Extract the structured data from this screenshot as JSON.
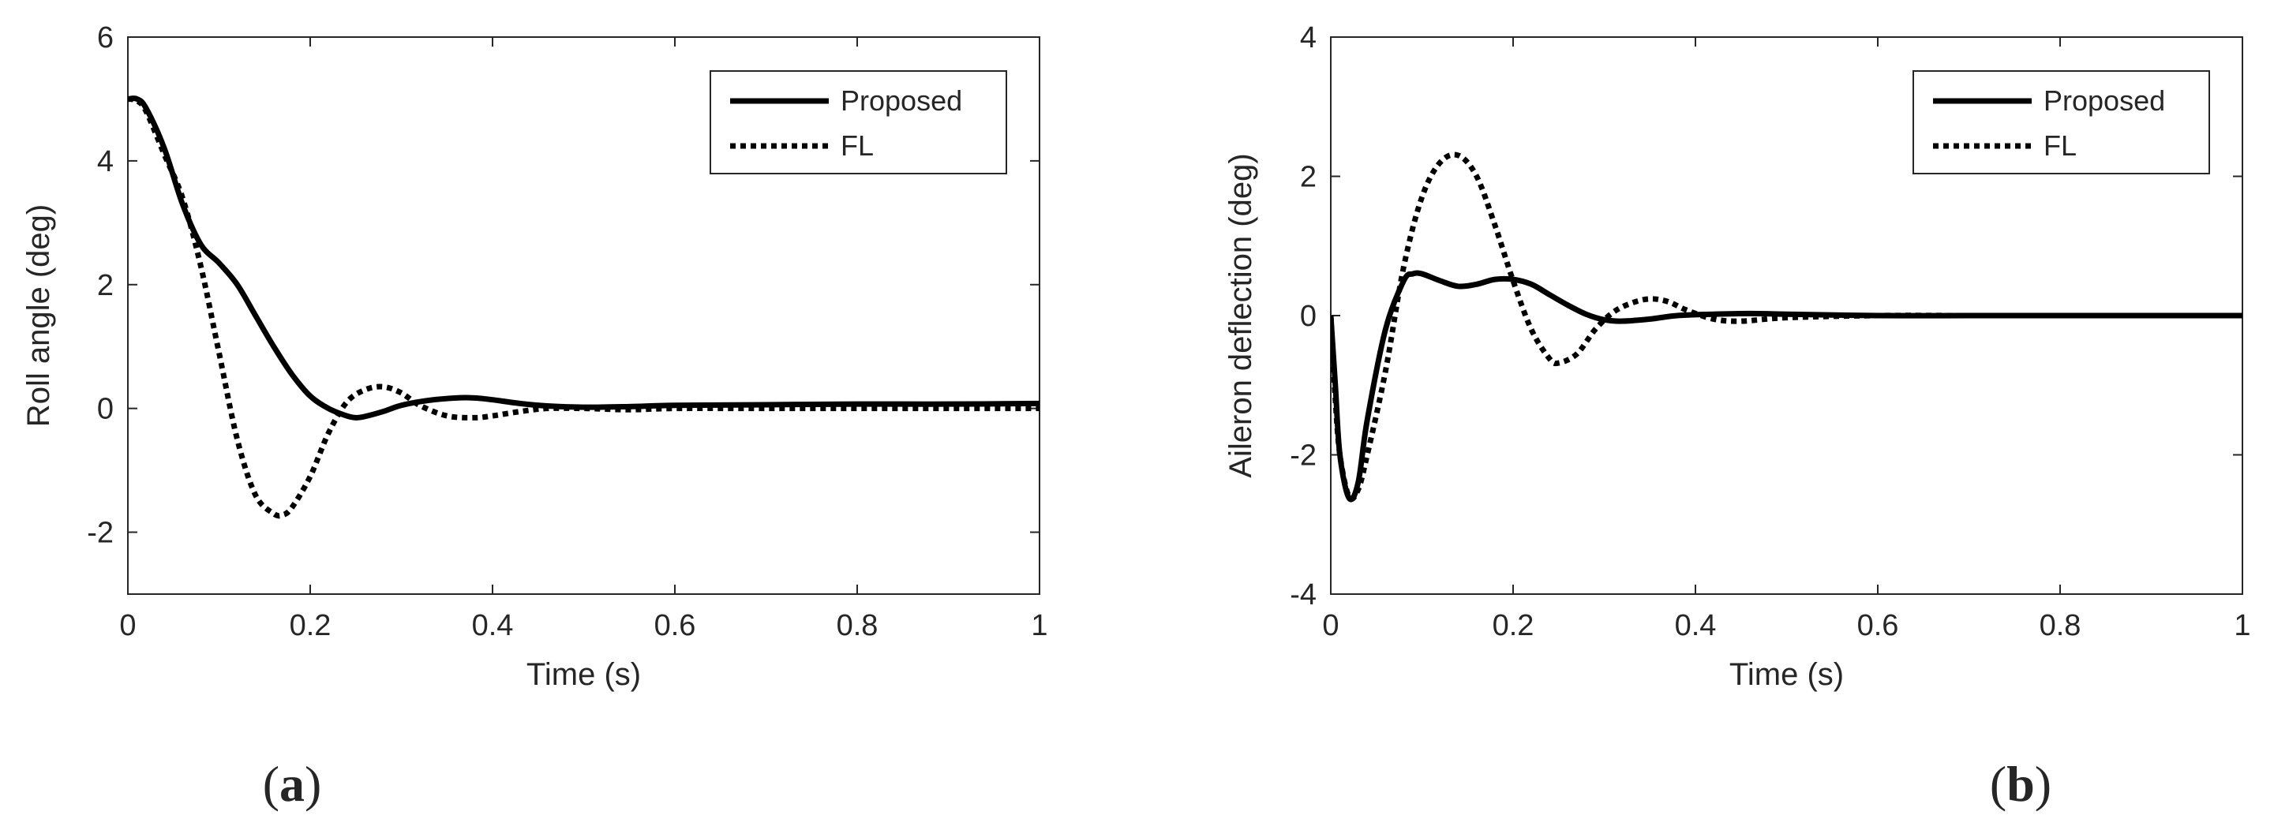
{
  "chart_data": [
    {
      "type": "line",
      "panel_label": "(a)",
      "panel_letter": "a",
      "xlabel": "Time (s)",
      "ylabel": "Roll angle (deg)",
      "xlim": [
        0,
        1
      ],
      "ylim": [
        -3,
        6
      ],
      "xticks": [
        0,
        0.2,
        0.4,
        0.6,
        0.8,
        1
      ],
      "xtick_labels": [
        "0",
        "0.2",
        "0.4",
        "0.6",
        "0.8",
        "1"
      ],
      "yticks": [
        -2,
        0,
        2,
        4,
        6
      ],
      "ytick_labels": [
        "-2",
        "0",
        "2",
        "4",
        "6"
      ],
      "legend_position": "top-right",
      "series": [
        {
          "name": "Proposed",
          "style": "solid",
          "x": [
            0,
            0.01,
            0.02,
            0.04,
            0.06,
            0.08,
            0.1,
            0.12,
            0.14,
            0.16,
            0.18,
            0.2,
            0.22,
            0.24,
            0.25,
            0.26,
            0.28,
            0.3,
            0.33,
            0.36,
            0.38,
            0.4,
            0.43,
            0.46,
            0.5,
            0.55,
            0.6,
            0.7,
            0.8,
            0.9,
            1.0
          ],
          "y": [
            5.0,
            5.0,
            4.85,
            4.2,
            3.3,
            2.65,
            2.35,
            2.0,
            1.5,
            1.0,
            0.55,
            0.2,
            0.0,
            -0.12,
            -0.15,
            -0.13,
            -0.05,
            0.05,
            0.13,
            0.17,
            0.17,
            0.14,
            0.08,
            0.04,
            0.02,
            0.03,
            0.05,
            0.06,
            0.07,
            0.07,
            0.08
          ]
        },
        {
          "name": "FL",
          "style": "dotted",
          "x": [
            0,
            0.01,
            0.02,
            0.04,
            0.06,
            0.08,
            0.1,
            0.12,
            0.14,
            0.16,
            0.17,
            0.18,
            0.2,
            0.22,
            0.24,
            0.26,
            0.28,
            0.3,
            0.32,
            0.35,
            0.38,
            0.4,
            0.43,
            0.46,
            0.5,
            0.55,
            0.6,
            0.7,
            0.8,
            0.9,
            1.0
          ],
          "y": [
            5.0,
            4.97,
            4.8,
            4.1,
            3.4,
            2.3,
            0.9,
            -0.5,
            -1.4,
            -1.7,
            -1.72,
            -1.6,
            -1.1,
            -0.4,
            0.1,
            0.3,
            0.35,
            0.25,
            0.05,
            -0.12,
            -0.15,
            -0.12,
            -0.05,
            0.0,
            0.0,
            -0.02,
            0.0,
            0.0,
            0.0,
            0.0,
            0.0
          ]
        }
      ]
    },
    {
      "type": "line",
      "panel_label": "(b)",
      "panel_letter": "b",
      "xlabel": "Time (s)",
      "ylabel": "Aileron deflection (deg)",
      "xlim": [
        0,
        1
      ],
      "ylim": [
        -4,
        4
      ],
      "xticks": [
        0,
        0.2,
        0.4,
        0.6,
        0.8,
        1
      ],
      "xtick_labels": [
        "0",
        "0.2",
        "0.4",
        "0.6",
        "0.8",
        "1"
      ],
      "yticks": [
        -4,
        -2,
        0,
        2,
        4
      ],
      "ytick_labels": [
        "-4",
        "-2",
        "0",
        "2",
        "4"
      ],
      "legend_position": "top-right",
      "series": [
        {
          "name": "Proposed",
          "style": "solid",
          "x": [
            0,
            0.005,
            0.01,
            0.02,
            0.03,
            0.04,
            0.06,
            0.08,
            0.09,
            0.1,
            0.12,
            0.14,
            0.16,
            0.18,
            0.2,
            0.22,
            0.24,
            0.26,
            0.28,
            0.3,
            0.32,
            0.35,
            0.38,
            0.42,
            0.46,
            0.5,
            0.6,
            0.7,
            0.8,
            0.9,
            1.0
          ],
          "y": [
            0.0,
            -1.0,
            -2.0,
            -2.62,
            -2.4,
            -1.5,
            -0.2,
            0.5,
            0.6,
            0.6,
            0.5,
            0.42,
            0.45,
            0.52,
            0.52,
            0.45,
            0.3,
            0.15,
            0.02,
            -0.06,
            -0.08,
            -0.05,
            0.0,
            0.02,
            0.03,
            0.02,
            0.0,
            0.0,
            0.0,
            0.0,
            0.0
          ]
        },
        {
          "name": "FL",
          "style": "dotted",
          "x": [
            0,
            0.005,
            0.01,
            0.02,
            0.03,
            0.04,
            0.06,
            0.08,
            0.1,
            0.12,
            0.14,
            0.16,
            0.18,
            0.2,
            0.22,
            0.24,
            0.25,
            0.27,
            0.29,
            0.31,
            0.33,
            0.35,
            0.37,
            0.39,
            0.42,
            0.45,
            0.5,
            0.6,
            0.7,
            0.8,
            1.0
          ],
          "y": [
            0.0,
            -1.2,
            -2.0,
            -2.6,
            -2.5,
            -2.0,
            -0.8,
            0.7,
            1.7,
            2.2,
            2.3,
            2.0,
            1.3,
            0.5,
            -0.2,
            -0.62,
            -0.68,
            -0.55,
            -0.2,
            0.05,
            0.18,
            0.24,
            0.2,
            0.08,
            -0.05,
            -0.08,
            -0.03,
            0.0,
            0.0,
            0.0,
            0.0
          ]
        }
      ]
    }
  ]
}
